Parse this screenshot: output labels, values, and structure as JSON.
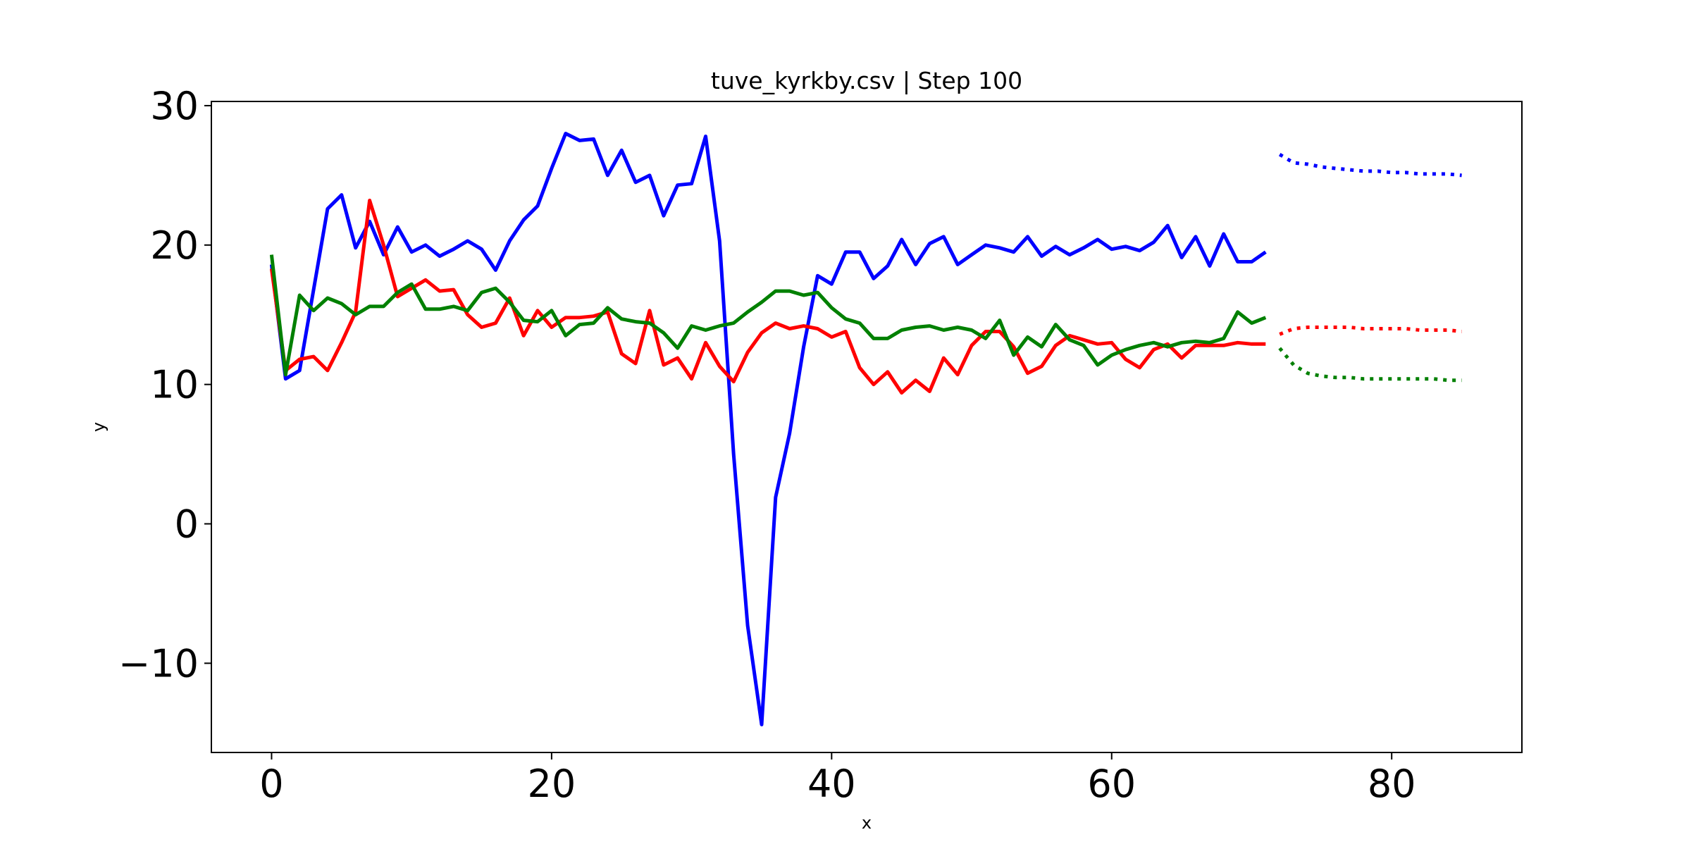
{
  "chart_data": {
    "type": "line",
    "title": "tuve_kyrkby.csv | Step 100",
    "xlabel": "x",
    "ylabel": "y",
    "xlim": [
      -4.3,
      89.3
    ],
    "ylim": [
      -16.4,
      30.3
    ],
    "xticks": [
      0,
      20,
      40,
      60,
      80
    ],
    "xtick_labels": [
      "0",
      "20",
      "40",
      "60",
      "80"
    ],
    "yticks": [
      -10,
      0,
      10,
      20,
      30
    ],
    "ytick_labels": [
      "−10",
      "0",
      "10",
      "20",
      "30"
    ],
    "grid": false,
    "legend": "none",
    "history_x_start": 0,
    "forecast_x_start": 72,
    "series": [
      {
        "color": "#0000ff",
        "history": [
          18.6,
          10.4,
          11.0,
          16.8,
          22.6,
          23.6,
          19.8,
          21.7,
          19.3,
          21.3,
          19.5,
          20.0,
          19.2,
          19.7,
          20.3,
          19.7,
          18.2,
          20.3,
          21.8,
          22.8,
          25.5,
          28.0,
          27.5,
          27.6,
          25.0,
          26.8,
          24.5,
          25.0,
          22.1,
          24.3,
          24.4,
          27.8,
          20.3,
          5.0,
          -7.3,
          -14.4,
          1.9,
          6.5,
          12.7,
          17.8,
          17.2,
          19.5,
          19.5,
          17.6,
          18.5,
          20.4,
          18.6,
          20.1,
          20.6,
          18.6,
          19.3,
          20.0,
          19.8,
          19.5,
          20.6,
          19.2,
          19.9,
          19.3,
          19.8,
          20.4,
          19.7,
          19.9,
          19.6,
          20.2,
          21.4,
          19.1,
          20.6,
          18.5,
          20.8,
          18.8,
          18.8,
          19.5
        ],
        "forecast": [
          26.5,
          25.9,
          25.8,
          25.6,
          25.5,
          25.4,
          25.3,
          25.3,
          25.2,
          25.2,
          25.1,
          25.1,
          25.1,
          25.0
        ]
      },
      {
        "color": "#ff0000",
        "history": [
          18.3,
          11.0,
          11.8,
          12.0,
          11.0,
          13.0,
          15.2,
          23.2,
          20.0,
          16.3,
          16.9,
          17.5,
          16.7,
          16.8,
          15.0,
          14.1,
          14.4,
          16.2,
          13.5,
          15.3,
          14.1,
          14.8,
          14.8,
          14.9,
          15.2,
          12.2,
          11.5,
          15.3,
          11.4,
          11.9,
          10.4,
          13.0,
          11.3,
          10.2,
          12.3,
          13.7,
          14.4,
          14.0,
          14.2,
          14.0,
          13.4,
          13.8,
          11.2,
          10.0,
          10.9,
          9.4,
          10.3,
          9.5,
          11.9,
          10.7,
          12.8,
          13.8,
          13.8,
          12.7,
          10.8,
          11.3,
          12.8,
          13.5,
          13.2,
          12.9,
          13.0,
          11.8,
          11.2,
          12.5,
          12.9,
          11.9,
          12.8,
          12.8,
          12.8,
          13.0,
          12.9,
          12.9
        ],
        "forecast": [
          13.6,
          14.0,
          14.1,
          14.1,
          14.1,
          14.1,
          14.0,
          14.0,
          14.0,
          14.0,
          13.9,
          13.9,
          13.9,
          13.8
        ]
      },
      {
        "color": "#008000",
        "history": [
          19.3,
          10.7,
          16.4,
          15.3,
          16.2,
          15.8,
          15.0,
          15.6,
          15.6,
          16.6,
          17.2,
          15.4,
          15.4,
          15.6,
          15.3,
          16.6,
          16.9,
          15.9,
          14.6,
          14.5,
          15.3,
          13.5,
          14.3,
          14.4,
          15.5,
          14.7,
          14.5,
          14.4,
          13.7,
          12.6,
          14.2,
          13.9,
          14.2,
          14.4,
          15.2,
          15.9,
          16.7,
          16.7,
          16.4,
          16.6,
          15.5,
          14.7,
          14.4,
          13.3,
          13.3,
          13.9,
          14.1,
          14.2,
          13.9,
          14.1,
          13.9,
          13.3,
          14.6,
          12.1,
          13.4,
          12.7,
          14.3,
          13.2,
          12.8,
          11.4,
          12.1,
          12.5,
          12.8,
          13.0,
          12.7,
          13.0,
          13.1,
          13.0,
          13.3,
          15.2,
          14.4,
          14.8
        ],
        "forecast": [
          12.6,
          11.4,
          10.8,
          10.6,
          10.5,
          10.5,
          10.4,
          10.4,
          10.4,
          10.4,
          10.4,
          10.4,
          10.3,
          10.3
        ]
      }
    ]
  }
}
